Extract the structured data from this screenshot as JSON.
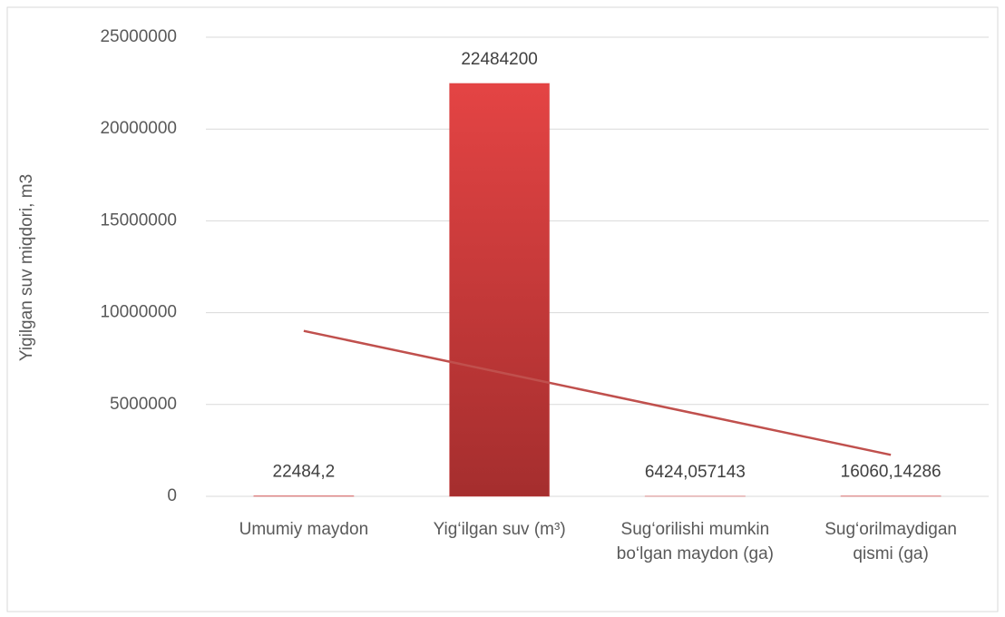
{
  "chart_data": {
    "type": "bar",
    "y_label": "Yigilgan suv miqdori, m3",
    "categories": [
      "Umumiy maydon",
      "Yig‘ilgan suv (m³)",
      "Sug‘orilishi mumkin bo‘lgan maydon (ga)",
      "Sug‘orilmaydigan qismi (ga)"
    ],
    "values": [
      22484.2,
      22484200,
      6424.057143,
      16060.14286
    ],
    "value_labels": [
      "22484,2",
      "22484200",
      "6424,057143",
      "16060,14286"
    ],
    "color": "#d33b3b",
    "trendline": {
      "color": "#c0504d",
      "values": [
        9006849,
        6757144,
        4507440,
        2257735
      ]
    },
    "ylim": [
      0,
      25000000
    ],
    "yticks": [
      0,
      5000000,
      10000000,
      15000000,
      20000000,
      25000000
    ],
    "grid": true
  }
}
